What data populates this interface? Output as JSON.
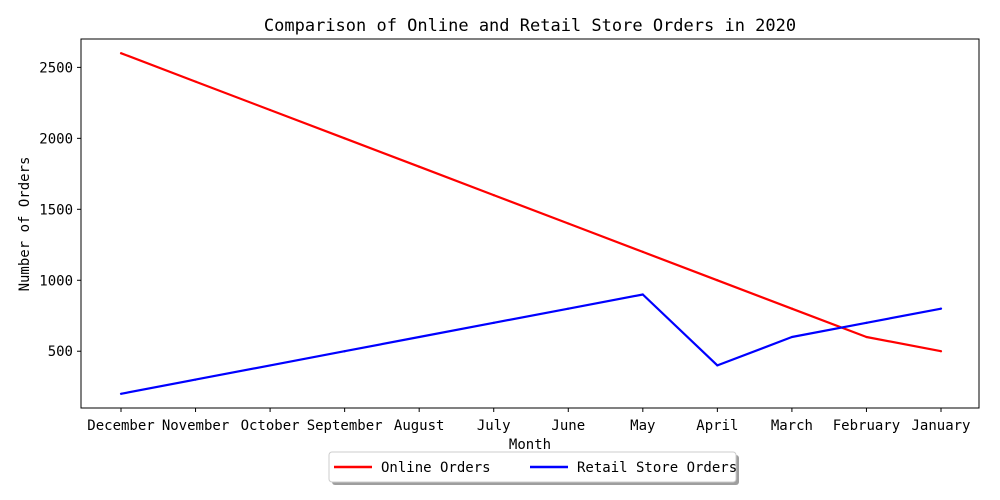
{
  "chart_data": {
    "type": "line",
    "title": "Comparison of Online and Retail Store Orders in 2020",
    "xlabel": "Month",
    "ylabel": "Number of Orders",
    "categories": [
      "December",
      "November",
      "October",
      "September",
      "August",
      "July",
      "June",
      "May",
      "April",
      "March",
      "February",
      "January"
    ],
    "yticks": [
      500,
      1000,
      1500,
      2000,
      2500
    ],
    "ylim": [
      100,
      2700
    ],
    "grid": false,
    "legend_position": "bottom-center",
    "series": [
      {
        "name": "Online Orders",
        "color": "#ff0000",
        "values": [
          2600,
          2400,
          2200,
          2000,
          1800,
          1600,
          1400,
          1200,
          1000,
          800,
          600,
          500
        ]
      },
      {
        "name": "Retail Store Orders",
        "color": "#0000ff",
        "values": [
          200,
          300,
          400,
          500,
          600,
          700,
          800,
          900,
          400,
          600,
          700,
          800
        ]
      }
    ]
  }
}
